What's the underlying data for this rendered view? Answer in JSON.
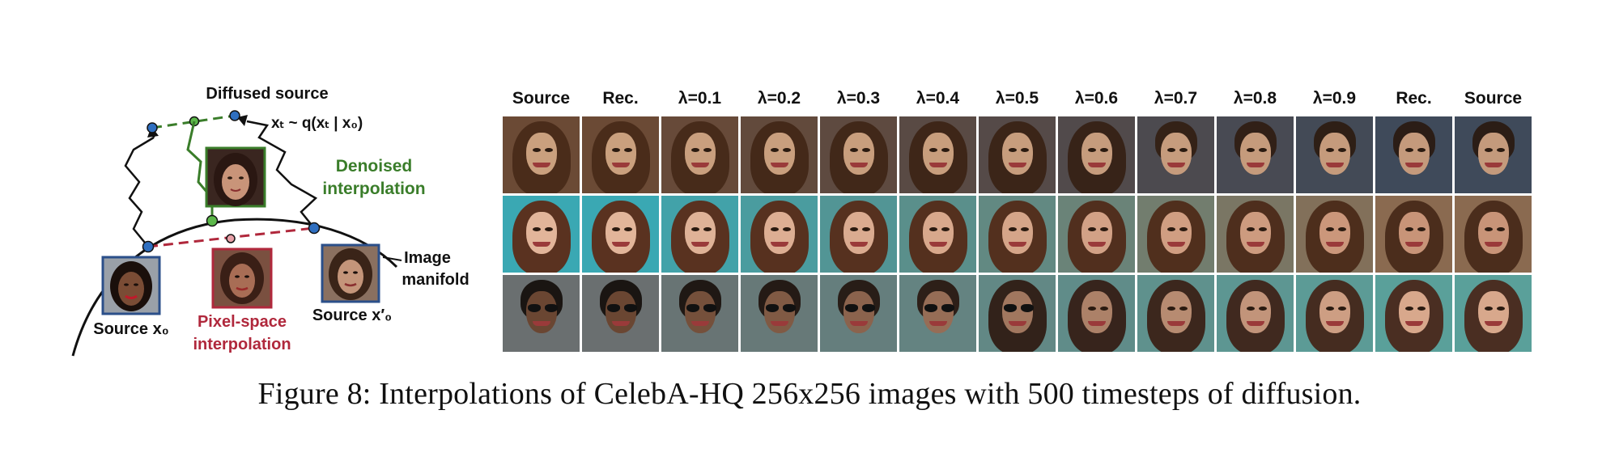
{
  "diagram": {
    "diffused_source_label": "Diffused source",
    "xt_formula": "xₜ ~ q(xₜ | x₀)",
    "denoised_line1": "Denoised",
    "denoised_line2": "interpolation",
    "image_label": "Image",
    "manifold_label": "manifold",
    "source_x0_label": "Source x₀",
    "source_x0p_label": "Source x′₀",
    "pixel_line1": "Pixel-space",
    "pixel_line2": "interpolation",
    "colors": {
      "green": "#3a7d2a",
      "red": "#b0283c",
      "blue": "#2f6fc0",
      "source_frame": "#2b4f8a",
      "pixel_frame": "#b0283c",
      "denoised_frame": "#3a7d2a"
    }
  },
  "grid": {
    "headers": [
      "Source",
      "Rec.",
      "λ=0.1",
      "λ=0.2",
      "λ=0.3",
      "λ=0.4",
      "λ=0.5",
      "λ=0.6",
      "λ=0.7",
      "λ=0.8",
      "λ=0.9",
      "Rec.",
      "Source"
    ],
    "rows": [
      {
        "bg": "#6b4a35",
        "hair": "#4a2c1a",
        "skin": "#caa07e",
        "bg2": "#3f4a5a",
        "hair2": "#2b1d16",
        "skin2": "#c49a7c"
      },
      {
        "bg": "#3aa8b3",
        "hair": "#5a3220",
        "skin": "#e2b59a",
        "bg2": "#8a6a50",
        "hair2": "#4b2d1c",
        "skin2": "#c89478"
      },
      {
        "bg": "#6a6f70",
        "hair": "#1a1512",
        "skin": "#6a4632",
        "bg2": "#5aa09a",
        "hair2": "#4a2e22",
        "skin2": "#d8a88c"
      }
    ]
  },
  "caption": {
    "text": "Figure 8: Interpolations of CelebA-HQ 256x256 images with 500 timesteps of diffusion."
  }
}
